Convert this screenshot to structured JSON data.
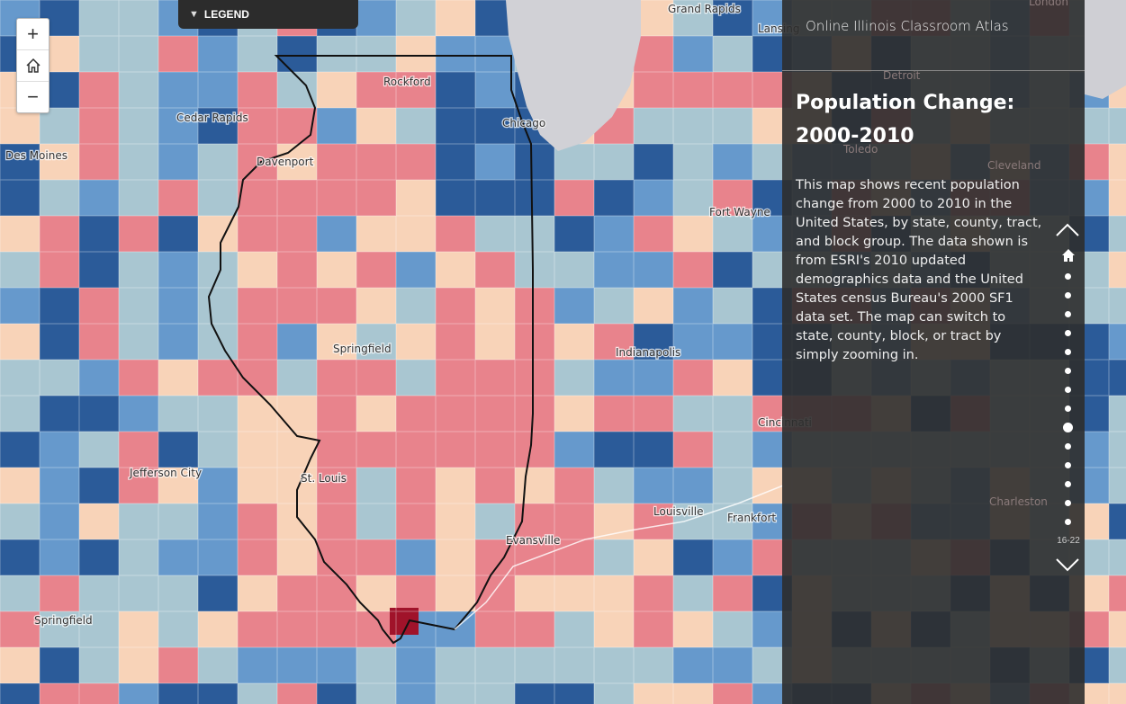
{
  "app": {
    "title": "Online Illinois Classroom Atlas"
  },
  "legend": {
    "label": "LEGEND"
  },
  "zoom_controls": {
    "zoom_in": "+",
    "home": "home",
    "zoom_out": "−"
  },
  "panel": {
    "title": "Population Change: 2000-2010",
    "description": "This map shows recent population change from 2000 to 2010 in the United States, by state, county, tract, and block group.  The data shown is from ESRI's 2010 updated demographics data and the United States census Bureau's 2000 SF1 data set.  The map can switch to state, county, block, or tract by simply zooming in.",
    "slide_counter": "16-22"
  },
  "colors": {
    "strong_growth": "#2b5b99",
    "growth": "#6699cc",
    "slight_growth": "#a9c6d1",
    "slight_decline": "#f8d3b8",
    "decline": "#e8838c",
    "strong_decline": "#a0132a",
    "lake": "#d1d1d6",
    "panel_bg": "#2d2d2d"
  },
  "cities": [
    {
      "name": "Rockford"
    },
    {
      "name": "Chicago"
    },
    {
      "name": "Davenport"
    },
    {
      "name": "Springfield"
    },
    {
      "name": "St. Louis"
    },
    {
      "name": "Evansville"
    },
    {
      "name": "Indianapolis"
    },
    {
      "name": "Louisville"
    },
    {
      "name": "Frankfort"
    },
    {
      "name": "Cincinnati"
    },
    {
      "name": "Fort Wayne"
    },
    {
      "name": "Cedar Rapids"
    },
    {
      "name": "Des Moines"
    },
    {
      "name": "Jefferson City"
    },
    {
      "name": "Springfield"
    },
    {
      "name": "Lansing"
    },
    {
      "name": "Grand Rapids"
    },
    {
      "name": "Detroit"
    },
    {
      "name": "Toledo"
    },
    {
      "name": "Cleveland"
    },
    {
      "name": "Charleston"
    },
    {
      "name": "London"
    }
  ]
}
